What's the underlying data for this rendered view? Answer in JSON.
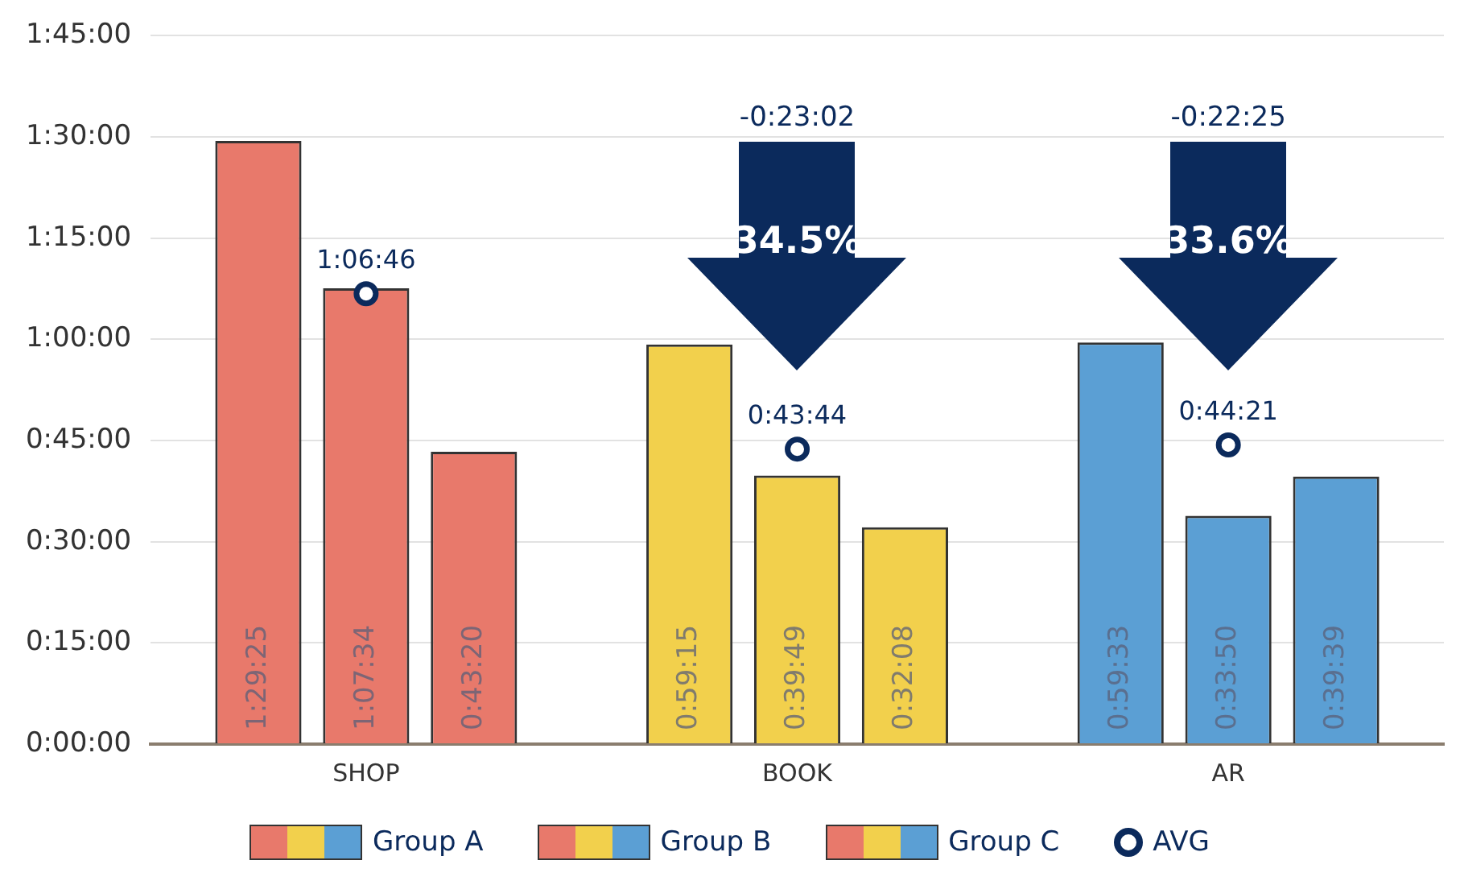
{
  "chart_data": {
    "type": "bar",
    "categories": [
      "SHOP",
      "BOOK",
      "AR"
    ],
    "ylim": [
      0,
      105
    ],
    "yticks": [
      {
        "value": 0,
        "label": "0:00:00"
      },
      {
        "value": 15,
        "label": "0:15:00"
      },
      {
        "value": 30,
        "label": "0:30:00"
      },
      {
        "value": 45,
        "label": "0:45:00"
      },
      {
        "value": 60,
        "label": "1:00:00"
      },
      {
        "value": 75,
        "label": "1:15:00"
      },
      {
        "value": 90,
        "label": "1:30:00"
      },
      {
        "value": 105,
        "label": "1:45:00"
      }
    ],
    "grid": "y",
    "legend": "bottom",
    "series": [
      {
        "name": "Group A",
        "colors": [
          "#e8796b",
          "#f2d04c",
          "#5b9fd4"
        ],
        "values": [
          89.4167,
          59.25,
          59.55
        ],
        "value_labels": [
          "1:29:25",
          "0:59:15",
          "0:59:33"
        ]
      },
      {
        "name": "Group B",
        "colors": [
          "#e8796b",
          "#f2d04c",
          "#5b9fd4"
        ],
        "values": [
          67.5667,
          39.8167,
          33.8333
        ],
        "value_labels": [
          "1:07:34",
          "0:39:49",
          "0:33:50"
        ]
      },
      {
        "name": "Group C",
        "colors": [
          "#e8796b",
          "#f2d04c",
          "#5b9fd4"
        ],
        "values": [
          43.3333,
          32.1333,
          39.65
        ],
        "value_labels": [
          "0:43:20",
          "0:32:08",
          "0:39:39"
        ]
      },
      {
        "name": "AVG",
        "type": "scatter",
        "marker": "circle",
        "color": "#0b2a5c",
        "x": [
          "SHOP",
          "BOOK",
          "AR"
        ],
        "values": [
          66.7667,
          43.7333,
          44.35
        ],
        "value_labels": [
          "1:06:46",
          "0:43:44",
          "0:44:21"
        ]
      }
    ],
    "annotations": [
      "-0:23:02",
      "34.5%",
      "-0:22:25",
      "33.6%"
    ]
  }
}
